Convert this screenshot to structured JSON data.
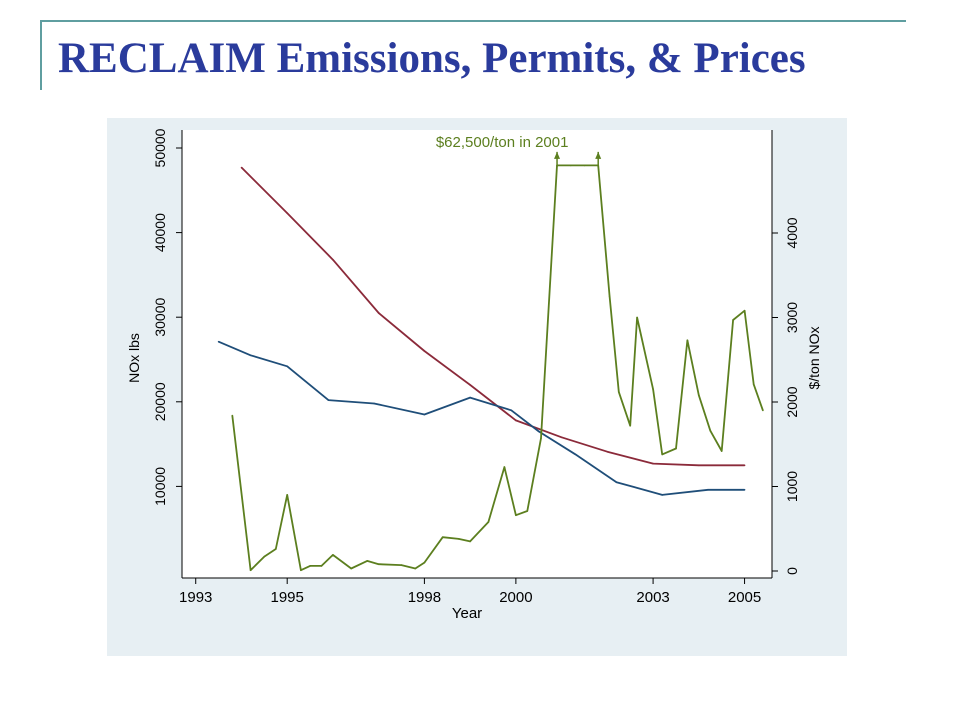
{
  "slide": {
    "title": "RECLAIM Emissions, Permits, & Prices"
  },
  "colors": {
    "title": "#2a3b9c",
    "accent": "#5f9ea0",
    "panel_bg": "#e7eff3",
    "plot_bg": "#ffffff",
    "emissions": "#1f4e79",
    "permits": "#8b2a3a",
    "price": "#5c7f1f"
  },
  "chart_data": {
    "type": "line",
    "title": "",
    "xlabel": "Year",
    "ylabel_left": "NOx lbs",
    "ylabel_right": "$/ton NOx",
    "xlim": [
      1992.7,
      2005.6
    ],
    "ylim_left": [
      0,
      52000
    ],
    "ylim_right": [
      0,
      5200
    ],
    "x_ticks": [
      {
        "value": 1993,
        "label": "1993"
      },
      {
        "value": 1995,
        "label": "1995"
      },
      {
        "value": 1998,
        "label": "1998"
      },
      {
        "value": 2000,
        "label": "2000"
      },
      {
        "value": 2003,
        "label": "2003"
      },
      {
        "value": 2005,
        "label": "2005"
      }
    ],
    "y_left_ticks": [
      {
        "value": 10000,
        "label": "10000"
      },
      {
        "value": 20000,
        "label": "20000"
      },
      {
        "value": 30000,
        "label": "30000"
      },
      {
        "value": 40000,
        "label": "40000"
      },
      {
        "value": 50000,
        "label": "50000"
      }
    ],
    "y_right_ticks": [
      {
        "value": 0,
        "label": "0"
      },
      {
        "value": 1000,
        "label": "1000"
      },
      {
        "value": 2000,
        "label": "2000"
      },
      {
        "value": 3000,
        "label": "3000"
      },
      {
        "value": 4000,
        "label": "4000"
      }
    ],
    "series": [
      {
        "key": "permits",
        "axis": "left",
        "color": "#8b2a3a",
        "x": [
          1994,
          1995,
          1996,
          1997,
          1998,
          1999,
          2000,
          2001,
          2002,
          2003,
          2004,
          2005
        ],
        "y": [
          47700,
          42300,
          36800,
          30500,
          26000,
          22000,
          17800,
          15800,
          14100,
          12700,
          12500,
          12500
        ]
      },
      {
        "key": "emissions",
        "axis": "left",
        "color": "#1f4e79",
        "x": [
          1993.5,
          1994.2,
          1995,
          1995.9,
          1996.9,
          1998,
          1999,
          1999.9,
          2000.5,
          2001.3,
          2002.2,
          2003.2,
          2004.2,
          2005
        ],
        "y": [
          27100,
          25500,
          24200,
          20200,
          19800,
          18500,
          20500,
          19000,
          16500,
          13800,
          10500,
          9000,
          9600,
          9600
        ]
      },
      {
        "key": "price",
        "axis": "right",
        "color": "#5c7f1f",
        "x": [
          1993.8,
          1994.2,
          1994.5,
          1994.75,
          1995,
          1995.3,
          1995.5,
          1995.75,
          1996,
          1996.4,
          1996.75,
          1997,
          1997.5,
          1997.8,
          1998,
          1998.4,
          1998.75,
          1999,
          1999.4,
          1999.75,
          2000,
          2000.25,
          2000.55,
          2000.9,
          2001.2,
          2001.5,
          2001.8,
          2002.05,
          2002.25,
          2002.5,
          2002.65,
          2003,
          2003.2,
          2003.5,
          2003.75,
          2004,
          2004.25,
          2004.5,
          2004.75,
          2005.0,
          2005.2,
          2005.4
        ],
        "y": [
          1840,
          10,
          170,
          260,
          900,
          10,
          60,
          60,
          190,
          30,
          120,
          80,
          70,
          30,
          100,
          400,
          380,
          350,
          580,
          1230,
          660,
          710,
          1570,
          4800,
          4800,
          4800,
          4800,
          3250,
          2120,
          1720,
          3000,
          2150,
          1380,
          1450,
          2730,
          2080,
          1660,
          1420,
          2970,
          3080,
          2210,
          1900
        ]
      }
    ],
    "annotations": [
      {
        "text": "$62,500/ton in 2001",
        "x": 1999.7,
        "y": 5020,
        "arrows_x": [
          2000.9,
          2001.8
        ],
        "arrow_y_from": 4960,
        "arrow_y_to": 4810
      }
    ]
  }
}
